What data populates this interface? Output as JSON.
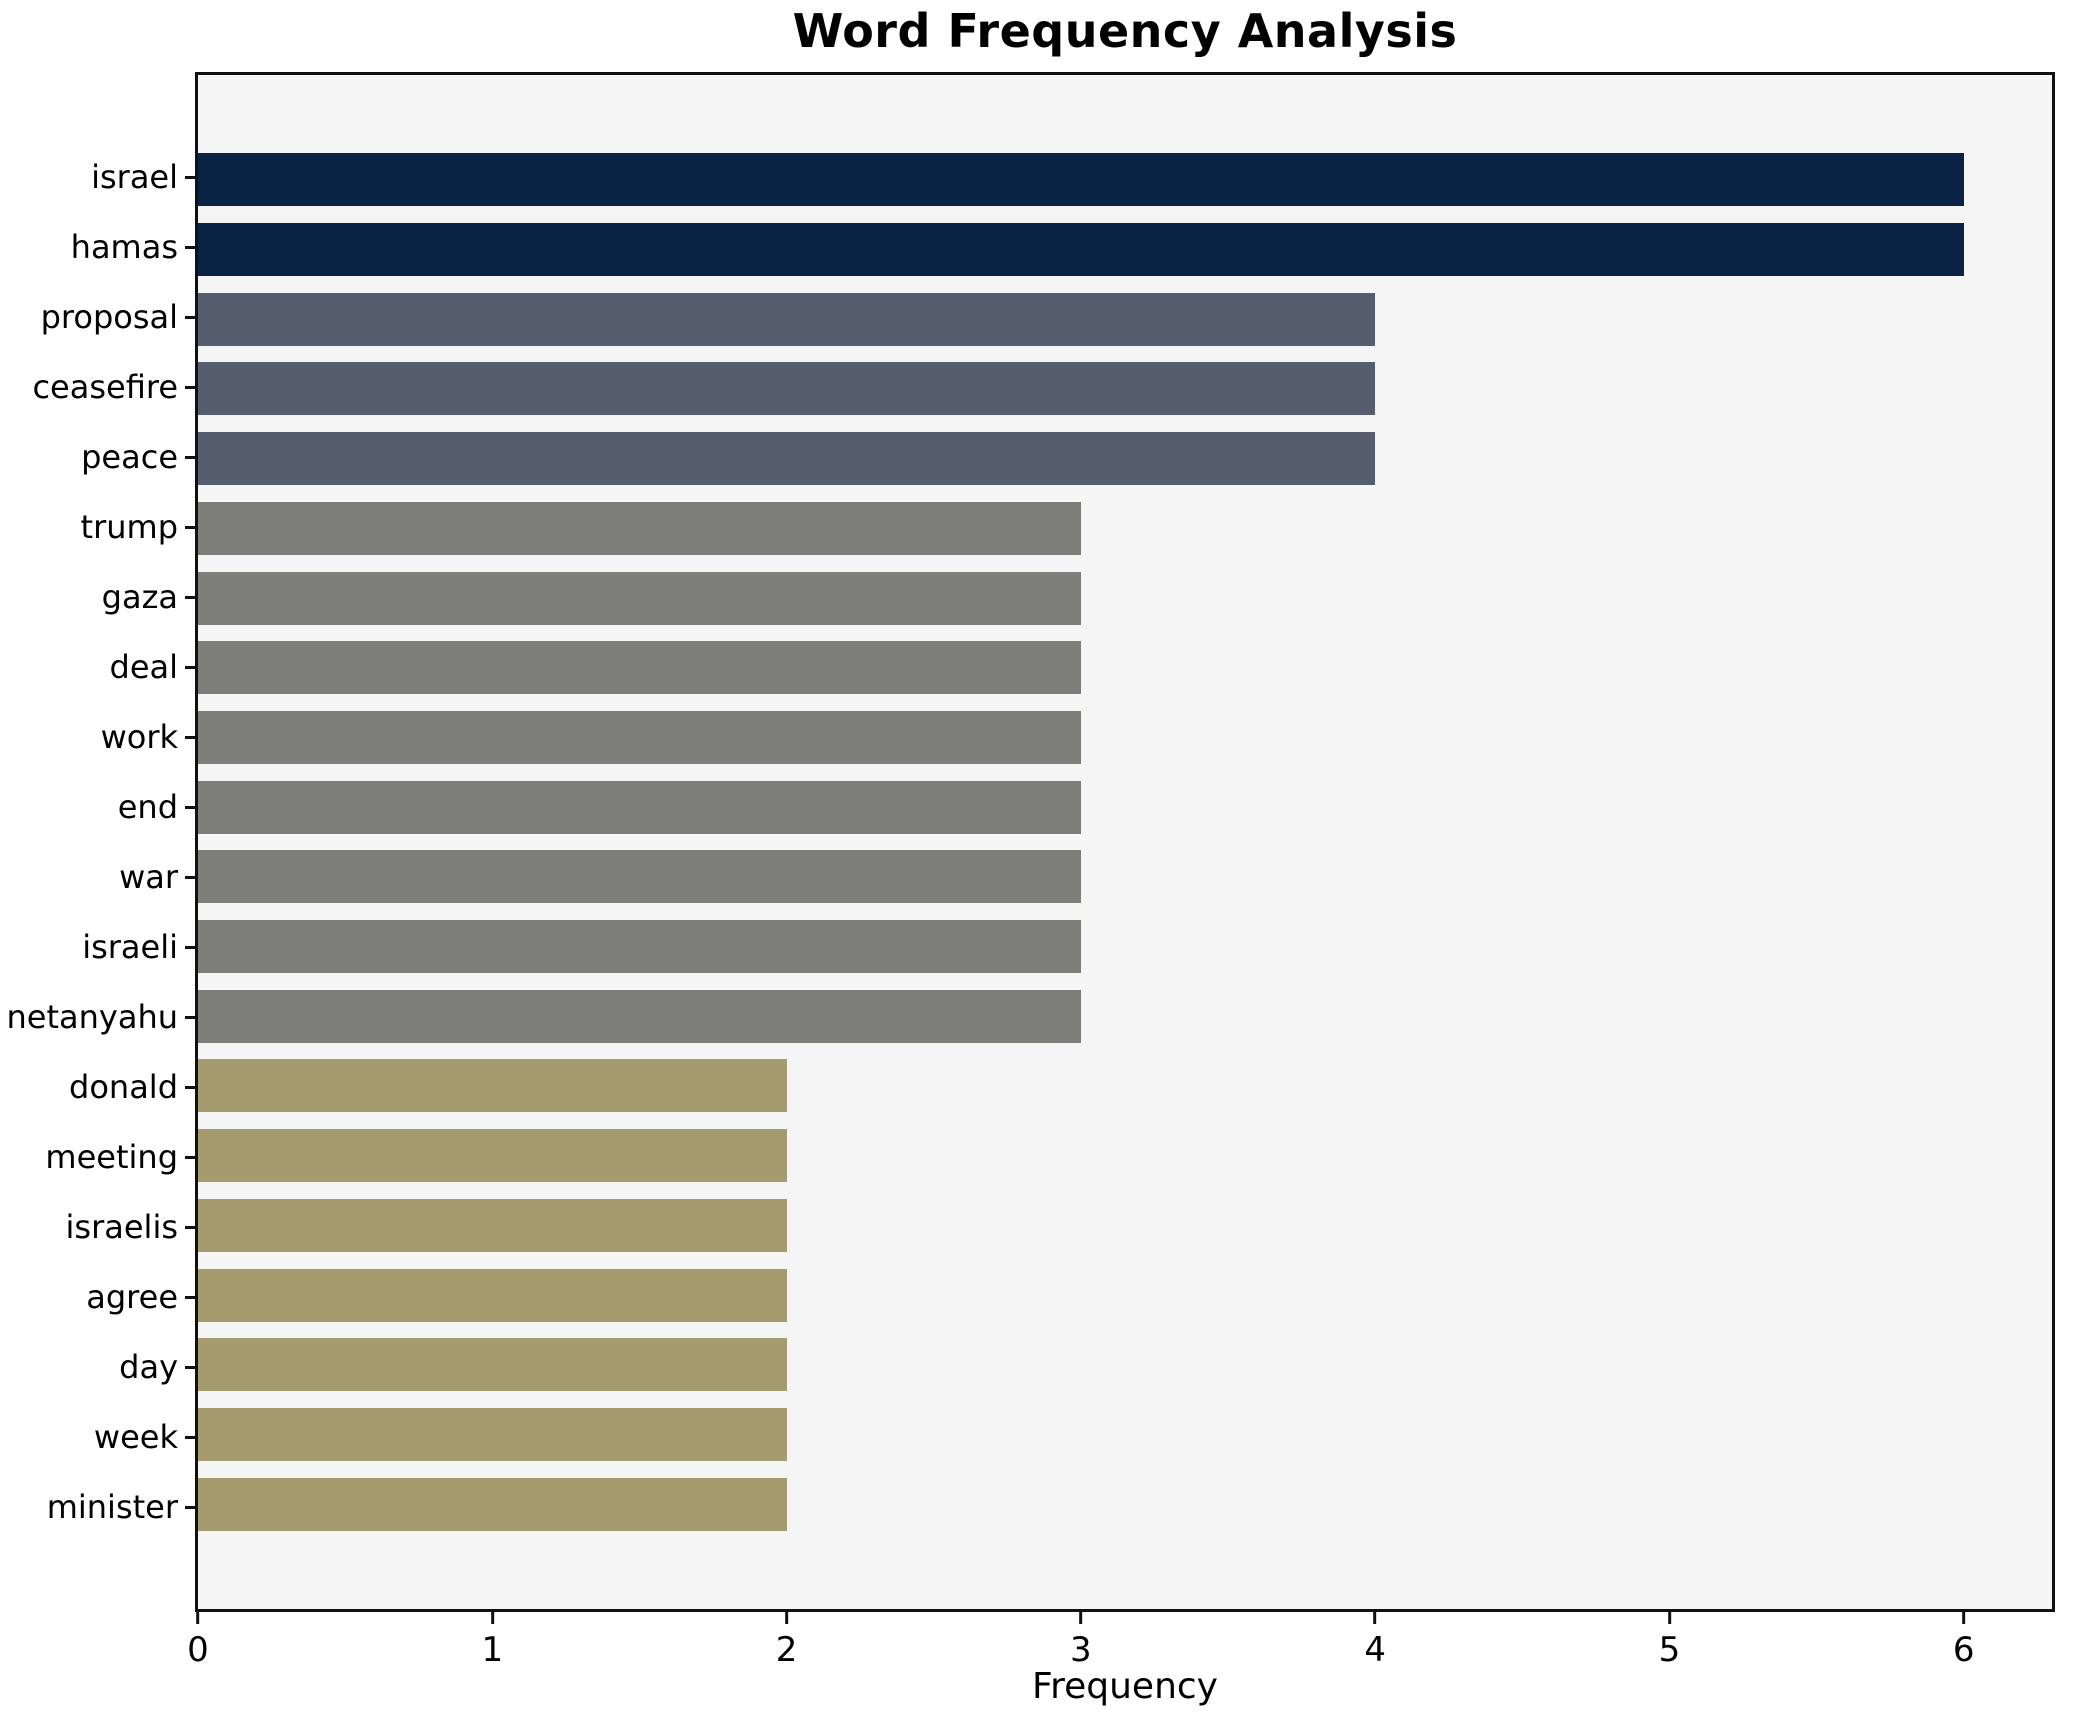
{
  "chart_data": {
    "type": "bar",
    "orientation": "horizontal",
    "title": "Word Frequency Analysis",
    "xlabel": "Frequency",
    "ylabel": "",
    "categories": [
      "israel",
      "hamas",
      "proposal",
      "ceasefire",
      "peace",
      "trump",
      "gaza",
      "deal",
      "work",
      "end",
      "war",
      "israeli",
      "netanyahu",
      "donald",
      "meeting",
      "israelis",
      "agree",
      "day",
      "week",
      "minister"
    ],
    "values": [
      6,
      6,
      4,
      4,
      4,
      3,
      3,
      3,
      3,
      3,
      3,
      3,
      3,
      2,
      2,
      2,
      2,
      2,
      2,
      2
    ],
    "bar_colors": [
      "#0a2345",
      "#0a2345",
      "#565e6e",
      "#565e6e",
      "#565e6e",
      "#7d7d79",
      "#7d7d79",
      "#7d7d79",
      "#7d7d79",
      "#7d7d79",
      "#7d7d79",
      "#7d7d79",
      "#7d7d79",
      "#a49b6f",
      "#a49b6f",
      "#a49b6f",
      "#a49b6f",
      "#a49b6f",
      "#a49b6f",
      "#a49b6f"
    ],
    "x_ticks": [
      0,
      1,
      2,
      3,
      4,
      5,
      6
    ],
    "xlim": [
      0,
      6.3
    ],
    "grid": false,
    "legend": null,
    "plot_background": "#f5f5f6",
    "spine_color": "#111111"
  }
}
